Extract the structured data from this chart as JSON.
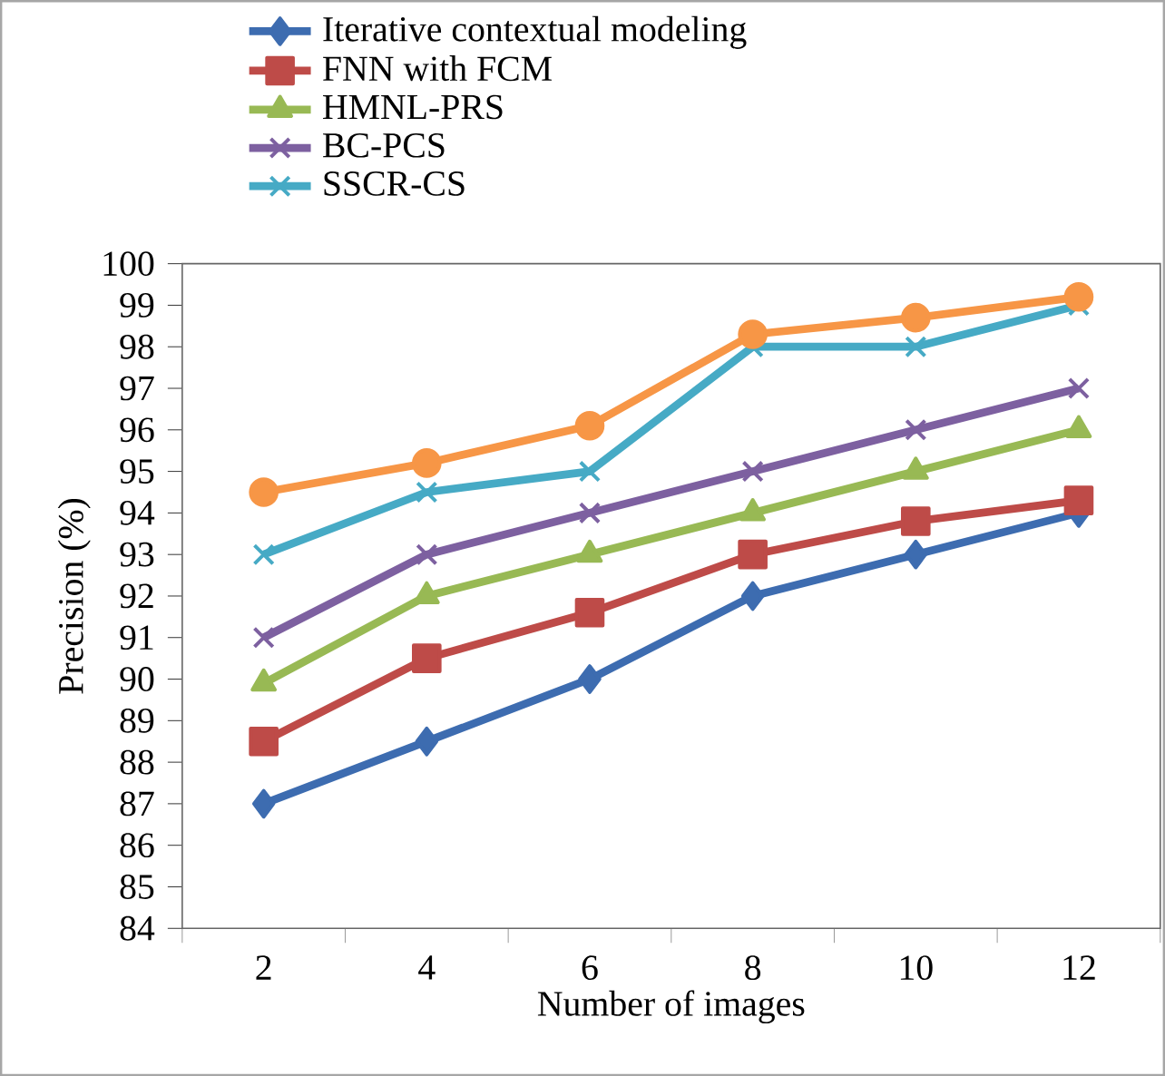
{
  "chart_data": {
    "type": "line",
    "xlabel": "Number of  images",
    "ylabel": "Precision (%)",
    "categories": [
      "2",
      "4",
      "6",
      "8",
      "10",
      "12"
    ],
    "ylim": [
      84,
      100
    ],
    "yticks": [
      84,
      85,
      86,
      87,
      88,
      89,
      90,
      91,
      92,
      93,
      94,
      95,
      96,
      97,
      98,
      99,
      100
    ],
    "grid": false,
    "legend": "top left",
    "line_style": "solid",
    "series": [
      {
        "name": "Iterative contextual modeling",
        "color": "#3d6cb0",
        "marker": "diamond",
        "values": [
          87,
          88.5,
          90,
          92,
          93,
          94
        ]
      },
      {
        "name": "FNN with FCM",
        "color": "#be4b48",
        "marker": "square",
        "values": [
          88.5,
          90.5,
          91.6,
          93,
          93.8,
          94.3
        ]
      },
      {
        "name": "HMNL-PRS",
        "color": "#98b954",
        "marker": "triangle",
        "values": [
          89.9,
          92,
          93,
          94,
          95,
          96
        ]
      },
      {
        "name": "BC-PCS",
        "color": "#7d60a0",
        "marker": "cross",
        "values": [
          91,
          93,
          94,
          95,
          96,
          97
        ]
      },
      {
        "name": "SSCR-CS",
        "color": "#46aac5",
        "marker": "cross",
        "values": [
          93,
          94.5,
          95,
          98,
          98,
          99
        ]
      },
      {
        "color": "#f79646",
        "marker": "circle",
        "values": [
          94.5,
          95.2,
          96.1,
          98.3,
          98.7,
          99.2
        ]
      }
    ]
  }
}
